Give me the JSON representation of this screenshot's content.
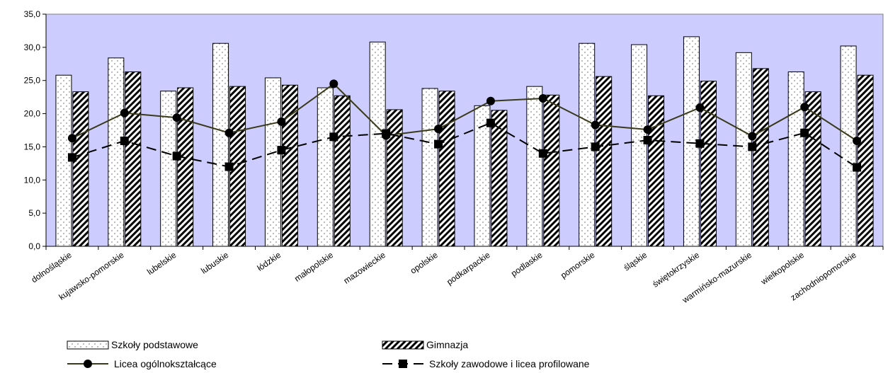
{
  "chart_data": {
    "type": "bar",
    "categories": [
      "dolnośląskie",
      "kujawsko-pomorskie",
      "lubelskie",
      "lubuskie",
      "łódzkie",
      "małopolskie",
      "mazowieckie",
      "opolskie",
      "podkarpackie",
      "podlaskie",
      "pomorskie",
      "śląskie",
      "świętokrzyskie",
      "warmińsko-mazurskie",
      "wielkopolskie",
      "zachodniopomorskie"
    ],
    "category_labels": [
      "dolnośląskie",
      "kujawsko-pomorskie",
      "lubelskie",
      "lubuskie",
      "łódzkie",
      "małopolskie",
      "mazowieckie",
      "opolskie",
      "podkarpackie",
      "podlaskie",
      "pomorskie",
      "śląskie",
      "świętokrzyskie",
      "warmińsko-mazurskie",
      "wielkopolskie",
      "zachodniopomorskie"
    ],
    "series": [
      {
        "name": "Szkoły podstawowe",
        "kind": "bar",
        "pattern": "dots",
        "values": [
          25.8,
          28.4,
          23.4,
          30.6,
          25.4,
          23.9,
          30.8,
          23.8,
          21.2,
          24.1,
          30.6,
          30.4,
          31.6,
          29.2,
          26.3,
          30.2
        ]
      },
      {
        "name": "Gimnazja",
        "kind": "bar",
        "pattern": "hatch",
        "values": [
          23.3,
          26.3,
          23.9,
          24.1,
          24.3,
          22.7,
          20.6,
          23.4,
          20.5,
          22.8,
          25.6,
          22.7,
          24.9,
          26.8,
          23.3,
          25.8
        ]
      },
      {
        "name": "Licea ogólnokształcące",
        "kind": "line",
        "marker": "circle",
        "line_style": "solid",
        "values": [
          16.3,
          20.1,
          19.4,
          17.1,
          18.8,
          24.5,
          16.7,
          17.7,
          21.9,
          22.3,
          18.3,
          17.6,
          20.9,
          16.6,
          21.0,
          15.9
        ]
      },
      {
        "name": "Szkoły zawodowe i licea profilowane",
        "kind": "line",
        "marker": "square",
        "line_style": "dashed",
        "values": [
          13.4,
          15.9,
          13.6,
          12.0,
          14.5,
          16.5,
          17.0,
          15.4,
          18.6,
          14.0,
          15.0,
          16.0,
          15.5,
          15.0,
          17.1,
          11.9
        ]
      }
    ],
    "ylim": [
      0,
      35
    ],
    "yticks": [
      "0,0",
      "5,0",
      "10,0",
      "15,0",
      "20,0",
      "25,0",
      "30,0",
      "35,0"
    ],
    "ytick_values": [
      0,
      5,
      10,
      15,
      20,
      25,
      30,
      35
    ],
    "grid": false,
    "legend_position": "bottom",
    "colors": {
      "plot_background": "#ccccff",
      "bar_fill": "#ffffff",
      "bar_stroke": "#000000",
      "line_solid": "#3a3a1a",
      "line_dashed": "#000000",
      "axis": "#000000"
    }
  }
}
